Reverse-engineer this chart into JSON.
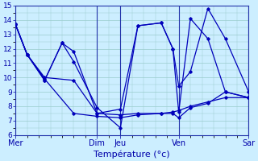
{
  "title": "Température (°c)",
  "background_color": "#cceeff",
  "grid_color": "#99cccc",
  "line_color": "#0000bb",
  "ylim": [
    6,
    15
  ],
  "yticks": [
    6,
    7,
    8,
    9,
    10,
    11,
    12,
    13,
    14,
    15
  ],
  "xlim": [
    0,
    40
  ],
  "day_positions": [
    0,
    14,
    18,
    28,
    40
  ],
  "day_labels": [
    "Mer",
    "Dim",
    "Jeu",
    "Ven",
    "Sar"
  ],
  "lines": [
    {
      "x": [
        0,
        2,
        5,
        10,
        14,
        18,
        21,
        25,
        27,
        28,
        30,
        33,
        36,
        40
      ],
      "y": [
        13.7,
        11.6,
        10.0,
        9.8,
        7.5,
        7.4,
        7.5,
        7.5,
        7.6,
        7.7,
        8.0,
        8.3,
        8.6,
        8.6
      ]
    },
    {
      "x": [
        0,
        2,
        5,
        10,
        14,
        18,
        21,
        25,
        27,
        28,
        30,
        33,
        36,
        40
      ],
      "y": [
        13.7,
        11.6,
        9.9,
        7.5,
        7.3,
        7.2,
        7.4,
        7.5,
        7.5,
        7.2,
        7.9,
        8.2,
        9.0,
        8.6
      ]
    },
    {
      "x": [
        0,
        2,
        5,
        8,
        10,
        14,
        18,
        21,
        25,
        27,
        28,
        30,
        33,
        36,
        40
      ],
      "y": [
        13.7,
        11.6,
        9.8,
        12.4,
        11.8,
        7.5,
        7.8,
        13.6,
        13.8,
        12.0,
        9.4,
        10.4,
        14.8,
        12.7,
        9.0
      ]
    },
    {
      "x": [
        0,
        2,
        5,
        8,
        10,
        14,
        18,
        21,
        25,
        27,
        28,
        30,
        33,
        36,
        40
      ],
      "y": [
        13.7,
        11.6,
        9.8,
        12.4,
        11.1,
        7.9,
        6.5,
        13.6,
        13.8,
        12.0,
        7.6,
        14.1,
        12.7,
        9.0,
        8.6
      ]
    }
  ]
}
